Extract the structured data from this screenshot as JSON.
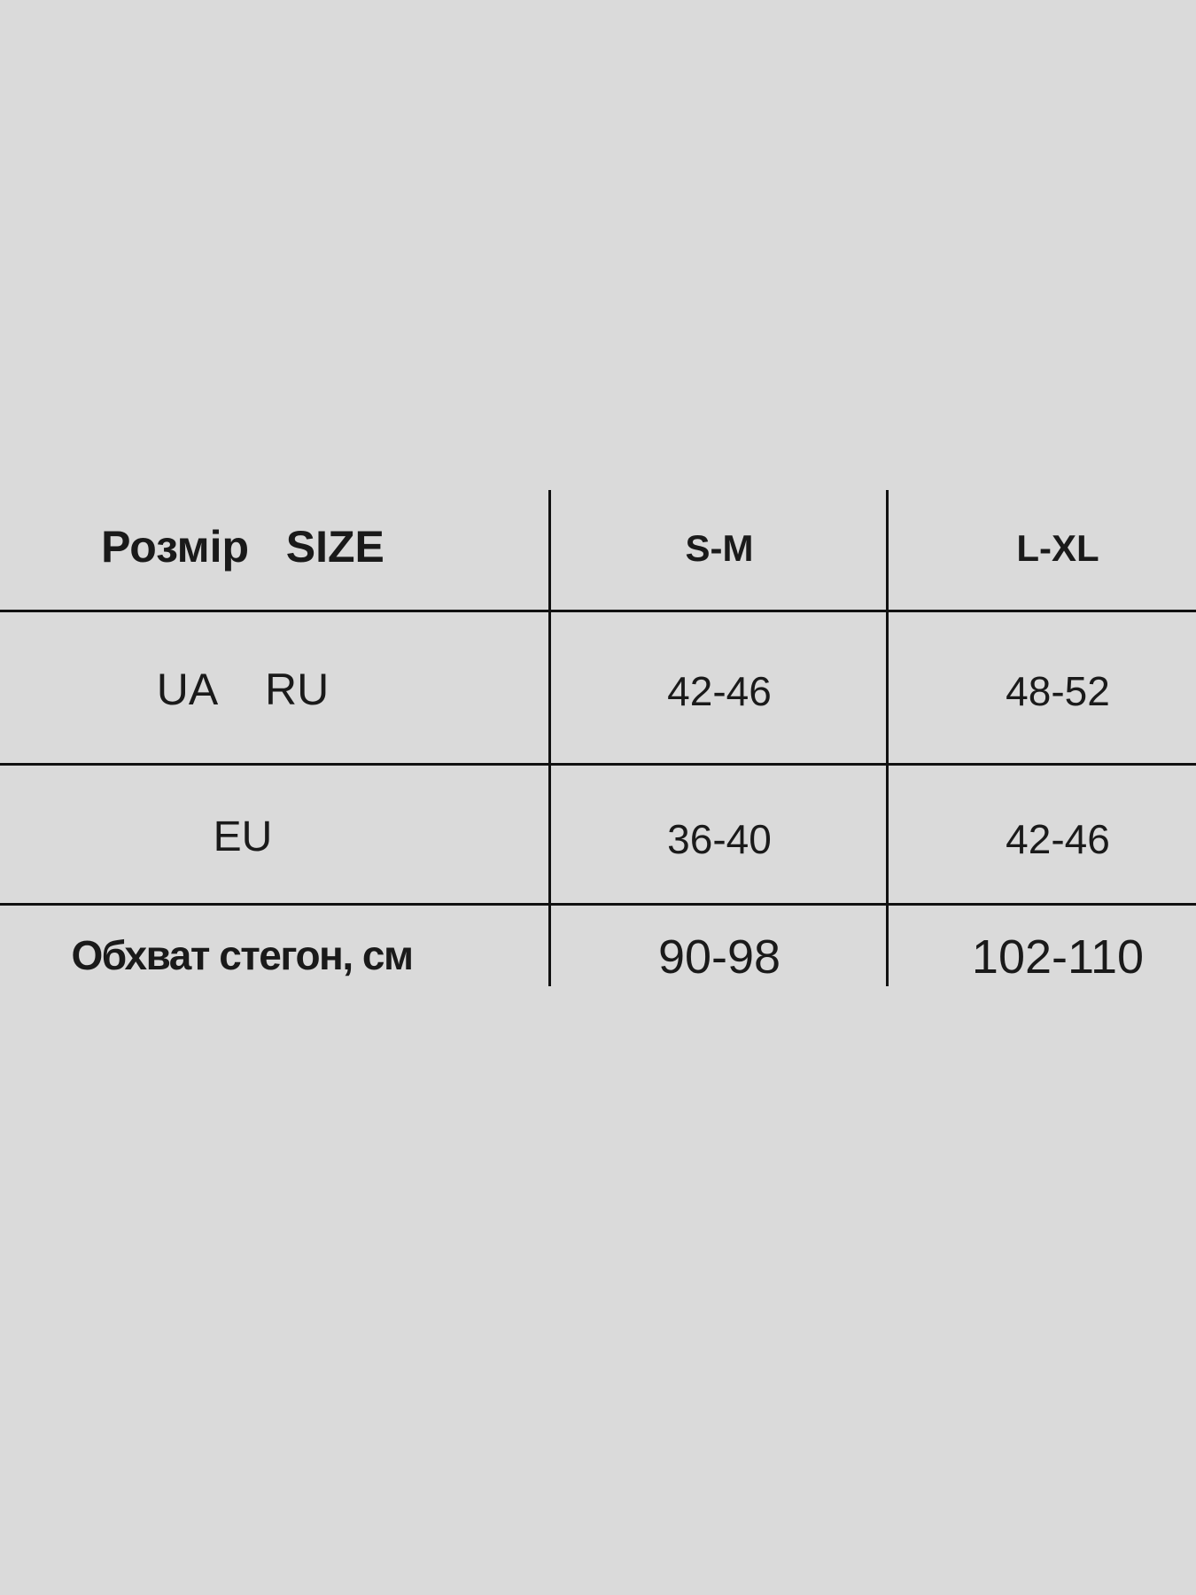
{
  "table": {
    "header": [
      "Розмір   SIZE",
      "S-M",
      "L-XL"
    ],
    "rows": [
      [
        "UA    RU",
        "42-46",
        "48-52"
      ],
      [
        "EU",
        "36-40",
        "42-46"
      ],
      [
        "Обхват стегон, см",
        "90-98",
        "102-110"
      ]
    ]
  },
  "colors": {
    "background": "#dadada",
    "text": "#1a1a1a",
    "lines": "#111111"
  }
}
